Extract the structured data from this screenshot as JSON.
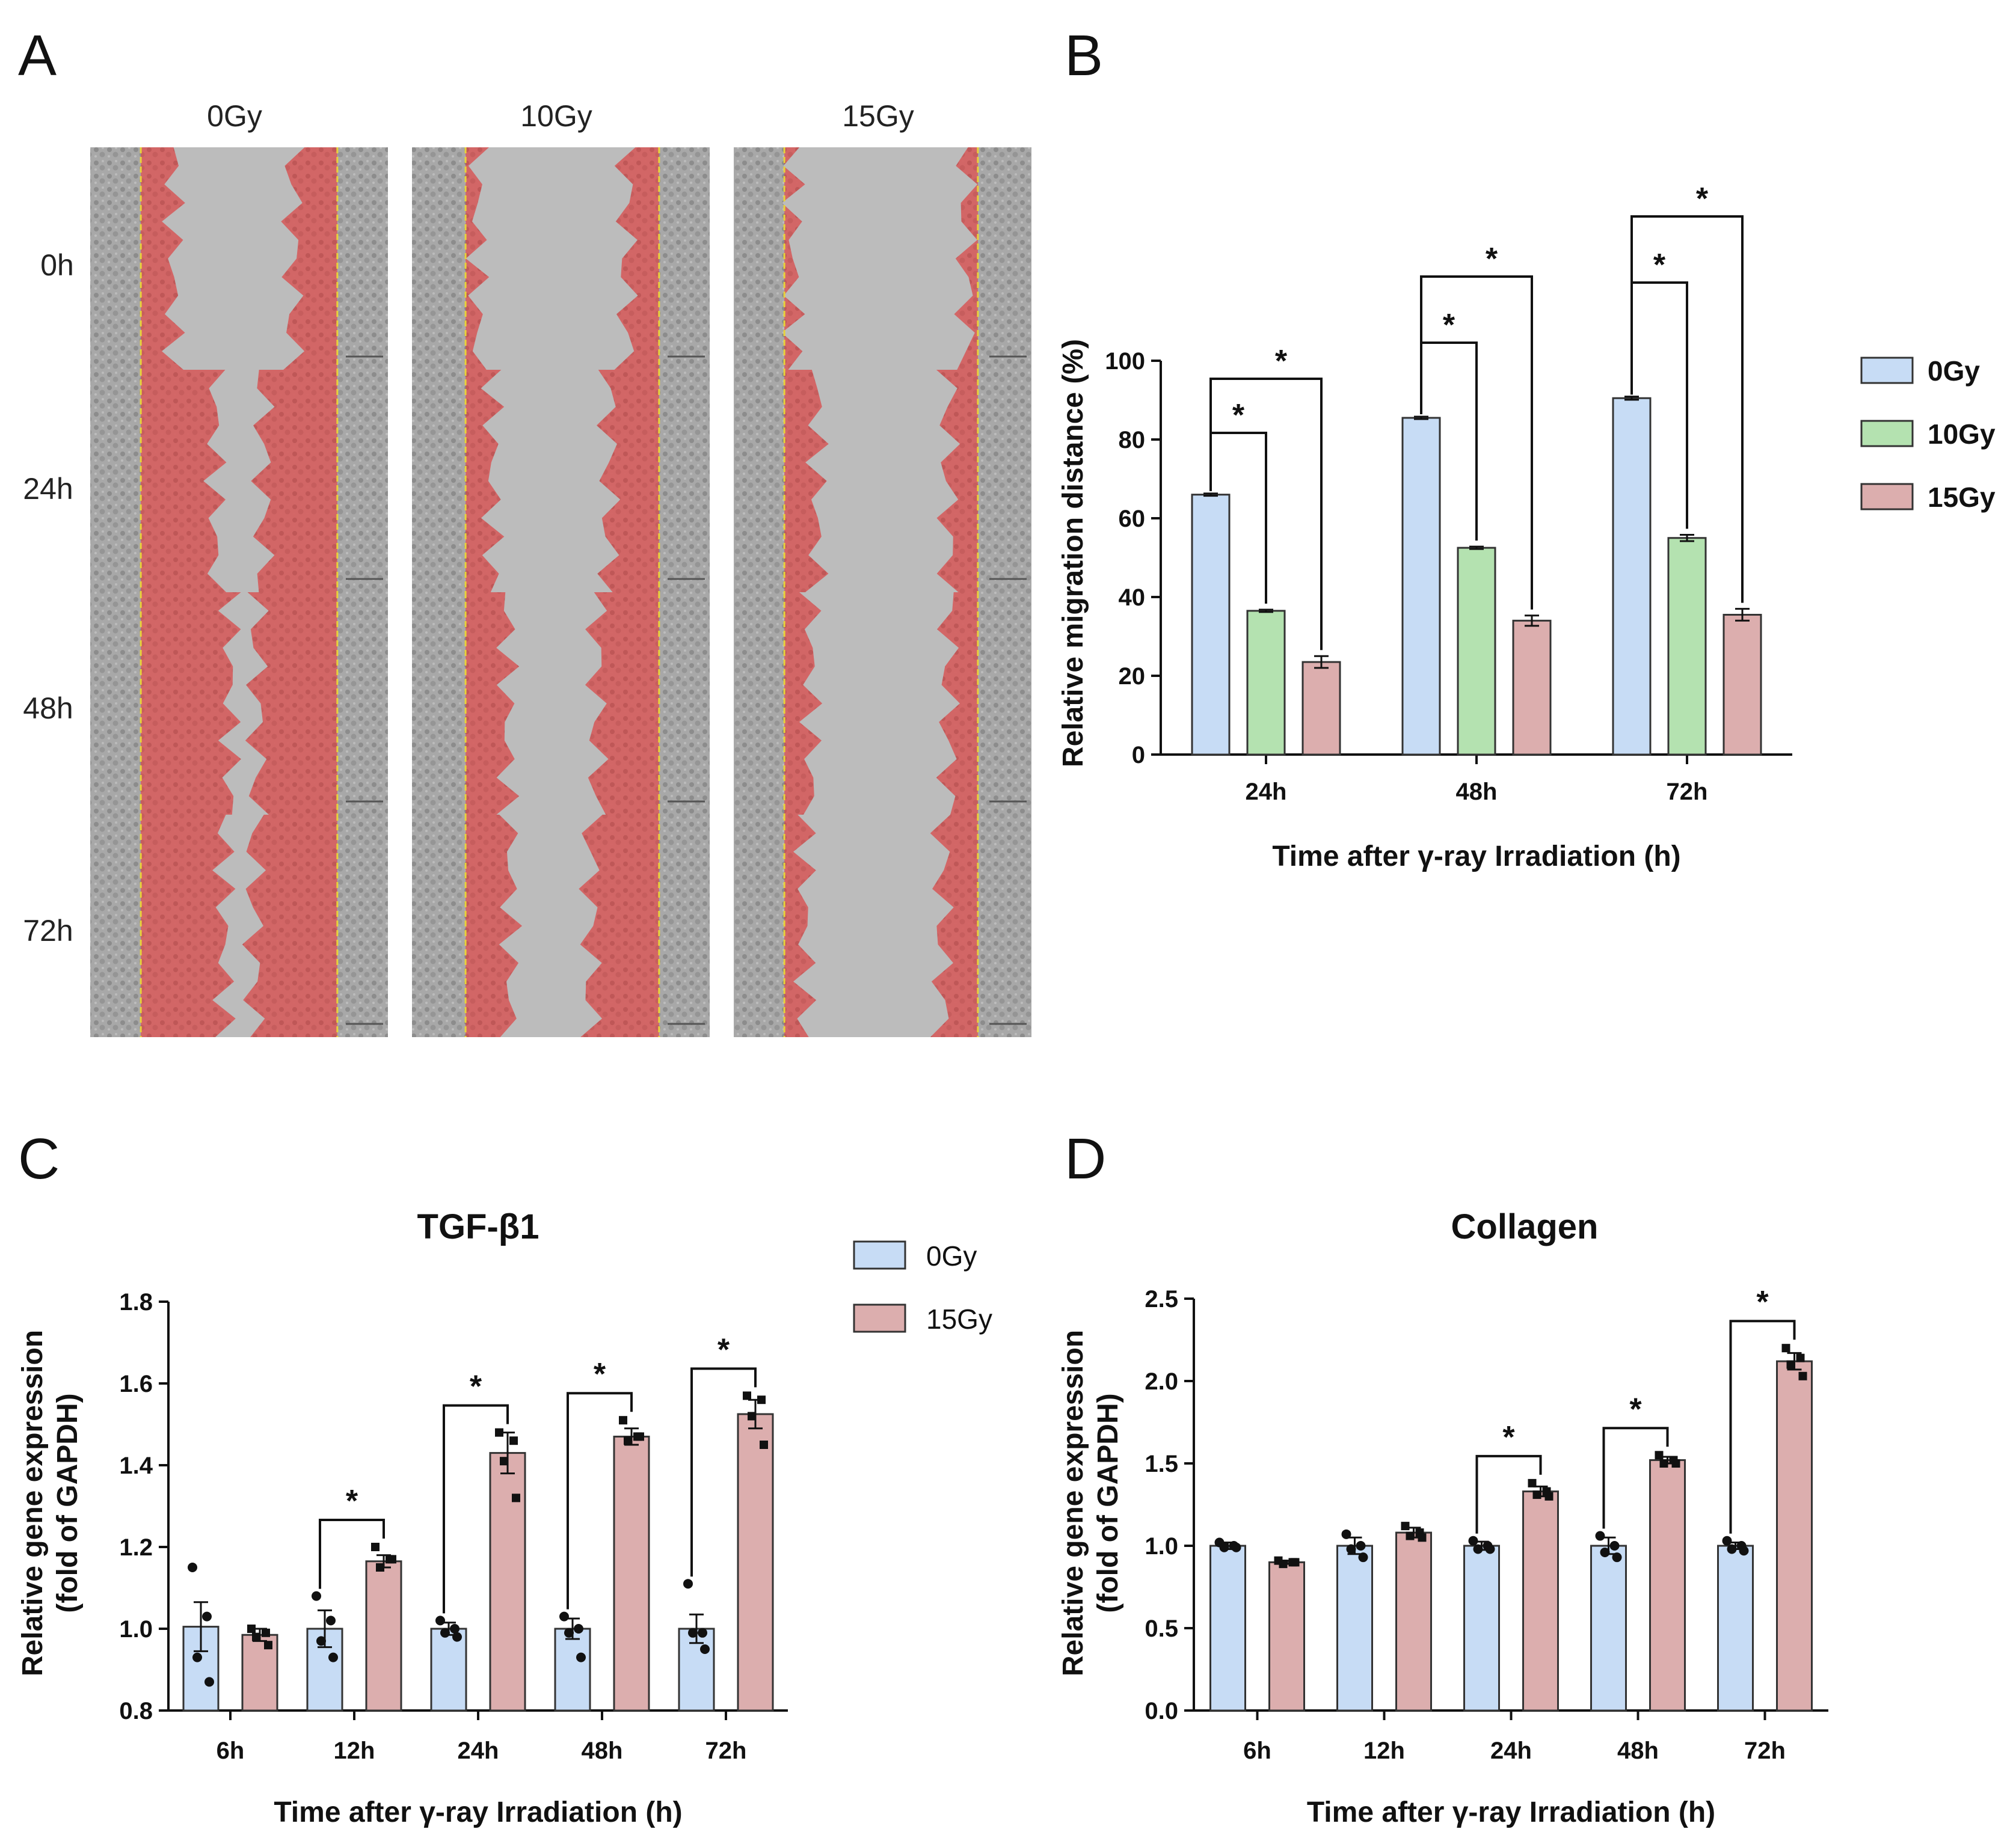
{
  "panels": {
    "A": "A",
    "B": "B",
    "C": "C",
    "D": "D"
  },
  "colors": {
    "0Gy": "#c7dcf5",
    "10Gy": "#b4e2b0",
    "15Gy": "#dcaeae",
    "wound": "#d85a5a",
    "cells": "#9a9a9a",
    "gap": "#bdbdbd",
    "edge_line": "#e8d23a"
  },
  "panel_a": {
    "columns": [
      "0Gy",
      "10Gy",
      "15Gy"
    ],
    "rows": [
      "0h",
      "24h",
      "48h",
      "72h"
    ]
  },
  "chart_data": [
    {
      "id": "B",
      "type": "bar",
      "title": "",
      "xlabel": "Time after γ-ray Irradiation (h)",
      "ylabel": "Relative migration distance (%)",
      "ylim": [
        0,
        100
      ],
      "yticks": [
        0,
        20,
        40,
        60,
        80,
        100
      ],
      "categories": [
        "24h",
        "48h",
        "72h"
      ],
      "series": [
        {
          "name": "0Gy",
          "values": [
            66,
            85.5,
            90.5
          ],
          "errors": [
            0.3,
            0.3,
            0.4
          ]
        },
        {
          "name": "10Gy",
          "values": [
            36.5,
            52.5,
            55
          ],
          "errors": [
            0.3,
            0.3,
            0.8
          ]
        },
        {
          "name": "15Gy",
          "values": [
            23.5,
            34,
            35.5
          ],
          "errors": [
            1.5,
            1.3,
            1.5
          ]
        }
      ],
      "significance": [
        "*",
        "*",
        "*",
        "*",
        "*",
        "*"
      ],
      "legend_position": "right"
    },
    {
      "id": "C",
      "type": "bar",
      "title": "TGF-β1",
      "xlabel": "Time after γ-ray Irradiation (h)",
      "ylabel": [
        "Relative gene expression",
        "(fold of GAPDH)"
      ],
      "ylim": [
        0.8,
        1.8
      ],
      "yticks": [
        0.8,
        1.0,
        1.2,
        1.4,
        1.6,
        1.8
      ],
      "categories": [
        "6h",
        "12h",
        "24h",
        "48h",
        "72h"
      ],
      "series": [
        {
          "name": "0Gy",
          "values": [
            1.005,
            1.0,
            1.0,
            1.0,
            1.0
          ],
          "errors": [
            0.06,
            0.045,
            0.015,
            0.025,
            0.035
          ],
          "points": [
            [
              1.15,
              1.03,
              0.93,
              0.87
            ],
            [
              1.08,
              1.02,
              0.97,
              0.93
            ],
            [
              1.02,
              1.0,
              0.99,
              0.98
            ],
            [
              1.03,
              1.0,
              0.99,
              0.93
            ],
            [
              1.11,
              0.99,
              0.99,
              0.95
            ]
          ]
        },
        {
          "name": "15Gy",
          "values": [
            0.985,
            1.165,
            1.43,
            1.47,
            1.525
          ],
          "errors": [
            0.015,
            0.015,
            0.05,
            0.02,
            0.035
          ],
          "points": [
            [
              1.0,
              0.99,
              0.98,
              0.96
            ],
            [
              1.2,
              1.17,
              1.15,
              1.17
            ],
            [
              1.48,
              1.46,
              1.41,
              1.32
            ],
            [
              1.51,
              1.47,
              1.46,
              1.47
            ],
            [
              1.57,
              1.56,
              1.52,
              1.45
            ]
          ]
        }
      ],
      "significance": [
        "*",
        "*",
        "*",
        "*"
      ],
      "legend_position": "right"
    },
    {
      "id": "D",
      "type": "bar",
      "title": "Collagen",
      "xlabel": "Time after γ-ray Irradiation (h)",
      "ylabel": [
        "Relative gene expression",
        "(fold of GAPDH)"
      ],
      "ylim": [
        0.0,
        2.5
      ],
      "yticks": [
        0.0,
        0.5,
        1.0,
        1.5,
        2.0,
        2.5
      ],
      "categories": [
        "6h",
        "12h",
        "24h",
        "48h",
        "72h"
      ],
      "series": [
        {
          "name": "0Gy",
          "values": [
            1.0,
            1.0,
            1.0,
            1.0,
            1.0
          ],
          "errors": [
            0.02,
            0.05,
            0.025,
            0.05,
            0.02
          ],
          "points": [
            [
              1.02,
              1.0,
              0.99,
              0.99
            ],
            [
              1.07,
              1.0,
              0.98,
              0.93
            ],
            [
              1.03,
              1.0,
              0.98,
              0.98
            ],
            [
              1.06,
              1.0,
              0.96,
              0.93
            ],
            [
              1.03,
              1.0,
              0.98,
              0.97
            ]
          ]
        },
        {
          "name": "15Gy",
          "values": [
            0.9,
            1.08,
            1.33,
            1.52,
            2.12
          ],
          "errors": [
            0.01,
            0.03,
            0.03,
            0.02,
            0.05
          ],
          "points": [
            [
              0.91,
              0.9,
              0.89,
              0.9
            ],
            [
              1.12,
              1.08,
              1.06,
              1.05
            ],
            [
              1.38,
              1.33,
              1.31,
              1.3
            ],
            [
              1.55,
              1.52,
              1.5,
              1.5
            ],
            [
              2.2,
              2.14,
              2.1,
              2.03
            ]
          ]
        }
      ],
      "significance": [
        "*",
        "*",
        "*"
      ],
      "legend_position": "none"
    }
  ]
}
